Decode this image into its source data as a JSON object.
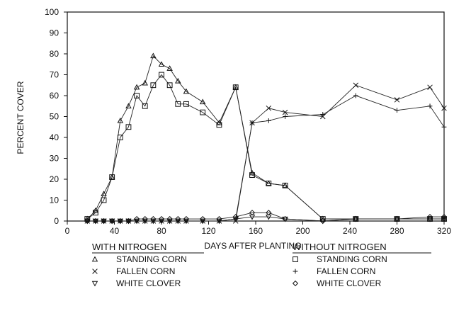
{
  "chart_data": {
    "type": "line",
    "title": "",
    "xlabel": "DAYS AFTER PLANTING",
    "ylabel": "PERCENT COVER",
    "xlim": [
      0,
      320
    ],
    "ylim": [
      0,
      100
    ],
    "x_ticks": [
      0,
      40,
      80,
      120,
      160,
      200,
      240,
      280,
      320
    ],
    "y_ticks": [
      0,
      10,
      20,
      30,
      40,
      50,
      60,
      70,
      80,
      90,
      100
    ],
    "grid": false,
    "legend_groups": [
      {
        "heading": "WITH NITROGEN",
        "entries": [
          {
            "series": 0,
            "label": "STANDING CORN",
            "marker": "triangle-up"
          },
          {
            "series": 1,
            "label": "FALLEN CORN",
            "marker": "x"
          },
          {
            "series": 2,
            "label": "WHITE CLOVER",
            "marker": "triangle-down"
          }
        ]
      },
      {
        "heading": "WITHOUT NITROGEN",
        "entries": [
          {
            "series": 3,
            "label": "STANDING CORN",
            "marker": "square"
          },
          {
            "series": 4,
            "label": "FALLEN CORN",
            "marker": "plus"
          },
          {
            "series": 5,
            "label": "WHITE CLOVER",
            "marker": "diamond"
          }
        ]
      }
    ],
    "series": [
      {
        "name": "STANDING CORN",
        "marker": "triangle-up",
        "points": [
          [
            17,
            1
          ],
          [
            24,
            5
          ],
          [
            31,
            13
          ],
          [
            38,
            21
          ],
          [
            45,
            48
          ],
          [
            52,
            55
          ],
          [
            59,
            64
          ],
          [
            66,
            66
          ],
          [
            73,
            79
          ],
          [
            80,
            75
          ],
          [
            87,
            73
          ],
          [
            94,
            67
          ],
          [
            101,
            62
          ],
          [
            115,
            57
          ],
          [
            129,
            47
          ],
          [
            143,
            64
          ],
          [
            157,
            23
          ],
          [
            171,
            18
          ],
          [
            185,
            17
          ],
          [
            217,
            1
          ],
          [
            245,
            1
          ],
          [
            280,
            1
          ],
          [
            308,
            1
          ],
          [
            320,
            1
          ]
        ]
      },
      {
        "name": "FALLEN CORN",
        "marker": "x",
        "points": [
          [
            17,
            0
          ],
          [
            24,
            0
          ],
          [
            31,
            0
          ],
          [
            38,
            0
          ],
          [
            45,
            0
          ],
          [
            52,
            0
          ],
          [
            59,
            0
          ],
          [
            66,
            0
          ],
          [
            73,
            0
          ],
          [
            80,
            0
          ],
          [
            87,
            0
          ],
          [
            94,
            0
          ],
          [
            101,
            0
          ],
          [
            115,
            0
          ],
          [
            129,
            0
          ],
          [
            143,
            0
          ],
          [
            157,
            47
          ],
          [
            171,
            54
          ],
          [
            185,
            52
          ],
          [
            217,
            50
          ],
          [
            245,
            65
          ],
          [
            280,
            58
          ],
          [
            308,
            64
          ],
          [
            320,
            54
          ]
        ]
      },
      {
        "name": "WHITE CLOVER",
        "marker": "triangle-down",
        "points": [
          [
            17,
            0
          ],
          [
            24,
            0
          ],
          [
            31,
            0
          ],
          [
            38,
            0
          ],
          [
            45,
            0
          ],
          [
            52,
            0
          ],
          [
            59,
            0
          ],
          [
            66,
            0
          ],
          [
            73,
            0
          ],
          [
            80,
            0
          ],
          [
            87,
            0
          ],
          [
            94,
            0
          ],
          [
            101,
            0
          ],
          [
            115,
            0
          ],
          [
            129,
            0
          ],
          [
            143,
            1
          ],
          [
            157,
            2
          ],
          [
            171,
            2
          ],
          [
            185,
            1
          ],
          [
            217,
            0
          ],
          [
            245,
            1
          ],
          [
            280,
            1
          ],
          [
            308,
            1
          ],
          [
            320,
            1
          ]
        ]
      },
      {
        "name": "STANDING CORN",
        "marker": "square",
        "points": [
          [
            17,
            1
          ],
          [
            24,
            4
          ],
          [
            31,
            10
          ],
          [
            38,
            21
          ],
          [
            45,
            40
          ],
          [
            52,
            45
          ],
          [
            59,
            60
          ],
          [
            66,
            55
          ],
          [
            73,
            65
          ],
          [
            80,
            70
          ],
          [
            87,
            65
          ],
          [
            94,
            56
          ],
          [
            101,
            56
          ],
          [
            115,
            52
          ],
          [
            129,
            46
          ],
          [
            143,
            64
          ],
          [
            157,
            22
          ],
          [
            171,
            18
          ],
          [
            185,
            17
          ],
          [
            217,
            1
          ],
          [
            245,
            1
          ],
          [
            280,
            1
          ],
          [
            308,
            1
          ],
          [
            320,
            1
          ]
        ]
      },
      {
        "name": "FALLEN CORN",
        "marker": "plus",
        "points": [
          [
            17,
            0
          ],
          [
            24,
            0
          ],
          [
            31,
            0
          ],
          [
            38,
            0
          ],
          [
            45,
            0
          ],
          [
            52,
            0
          ],
          [
            59,
            0
          ],
          [
            66,
            0
          ],
          [
            73,
            0
          ],
          [
            80,
            0
          ],
          [
            87,
            0
          ],
          [
            94,
            0
          ],
          [
            101,
            0
          ],
          [
            115,
            0
          ],
          [
            129,
            0
          ],
          [
            143,
            1
          ],
          [
            157,
            47
          ],
          [
            171,
            48
          ],
          [
            185,
            50
          ],
          [
            217,
            51
          ],
          [
            245,
            60
          ],
          [
            280,
            53
          ],
          [
            308,
            55
          ],
          [
            320,
            45
          ]
        ]
      },
      {
        "name": "WHITE CLOVER",
        "marker": "diamond",
        "points": [
          [
            17,
            0
          ],
          [
            24,
            0
          ],
          [
            31,
            0
          ],
          [
            38,
            0
          ],
          [
            45,
            0
          ],
          [
            52,
            0
          ],
          [
            59,
            1
          ],
          [
            66,
            1
          ],
          [
            73,
            1
          ],
          [
            80,
            1
          ],
          [
            87,
            1
          ],
          [
            94,
            1
          ],
          [
            101,
            1
          ],
          [
            115,
            1
          ],
          [
            129,
            1
          ],
          [
            143,
            2
          ],
          [
            157,
            4
          ],
          [
            171,
            4
          ],
          [
            185,
            1
          ],
          [
            217,
            0
          ],
          [
            245,
            1
          ],
          [
            280,
            1
          ],
          [
            308,
            2
          ],
          [
            320,
            2
          ]
        ]
      }
    ]
  }
}
